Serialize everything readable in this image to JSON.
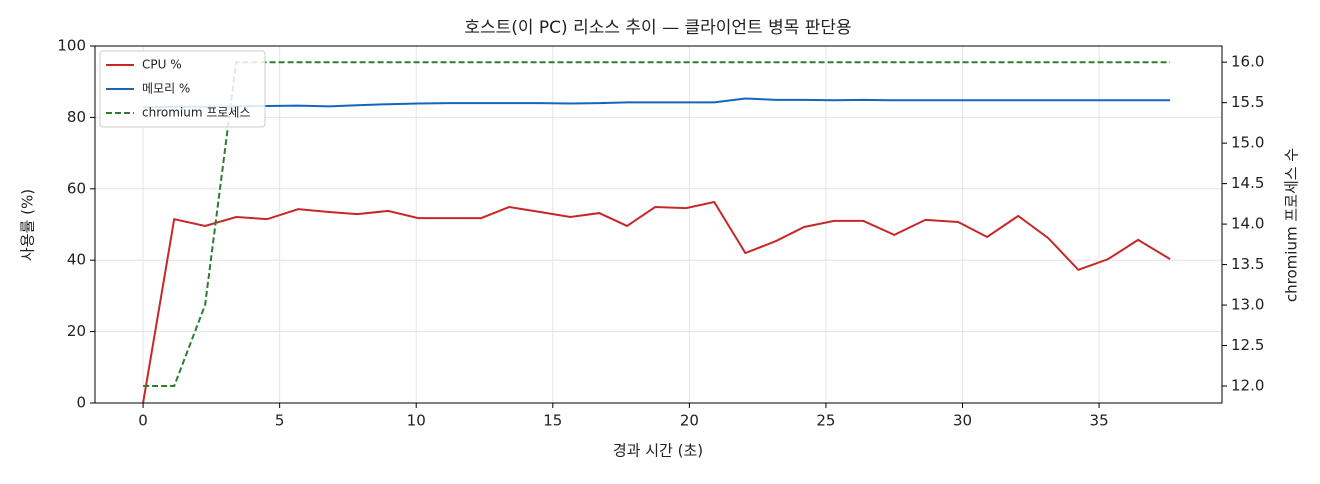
{
  "chart_data": {
    "type": "line",
    "title": "호스트(이 PC) 리소스 추이 — 클라이언트 병목 판단용",
    "x_label": "경과 시간 (초)",
    "y_label": "사용률 (%)",
    "y2_label": "chromium 프로세스 수",
    "x": [
      0,
      1.14,
      2.27,
      3.41,
      4.54,
      5.68,
      6.81,
      7.84,
      8.97,
      10.07,
      11.2,
      12.38,
      13.4,
      14.54,
      15.64,
      16.7,
      17.72,
      18.75,
      19.88,
      20.91,
      22.05,
      23.18,
      24.2,
      25.3,
      26.37,
      27.5,
      28.64,
      29.84,
      30.9,
      32.04,
      33.14,
      34.24,
      35.33,
      36.43,
      37.6
    ],
    "series": [
      {
        "name": "CPU %",
        "color": "#c62828",
        "style": "solid",
        "axis": "y",
        "values": [
          0,
          51.5,
          49.6,
          52.1,
          51.5,
          54.3,
          53.5,
          52.9,
          53.8,
          51.8,
          51.8,
          51.8,
          54.9,
          53.5,
          52.1,
          53.2,
          49.6,
          54.9,
          54.6,
          56.3,
          42,
          45.4,
          49.3,
          51,
          51,
          47.1,
          51.3,
          50.7,
          46.5,
          52.4,
          46.2,
          37.3,
          40.3,
          45.7,
          40.3
        ]
      },
      {
        "name": "메모리 %",
        "color": "#1565c0",
        "style": "solid",
        "axis": "y",
        "values": [
          82.8,
          83,
          83,
          83.1,
          83.2,
          83.3,
          83.1,
          83.4,
          83.7,
          83.9,
          84,
          84,
          84,
          84,
          83.9,
          84,
          84.2,
          84.2,
          84.2,
          84.2,
          85.3,
          84.9,
          84.9,
          84.8,
          84.9,
          84.8,
          84.8,
          84.8,
          84.8,
          84.8,
          84.8,
          84.8,
          84.8,
          84.8,
          84.8
        ]
      },
      {
        "name": "chromium 프로세스",
        "color": "#2e7d32",
        "style": "dashed",
        "axis": "y2",
        "values": [
          12,
          12,
          13,
          16,
          16,
          16,
          16,
          16,
          16,
          16,
          16,
          16,
          16,
          16,
          16,
          16,
          16,
          16,
          16,
          16,
          16,
          16,
          16,
          16,
          16,
          16,
          16,
          16,
          16,
          16,
          16,
          16,
          16,
          16,
          16
        ]
      }
    ],
    "xlim": [
      -1.76,
      39.5
    ],
    "xticks": [
      0,
      5,
      10,
      15,
      20,
      25,
      30,
      35
    ],
    "ylim": [
      0,
      100
    ],
    "yticks": [
      0,
      20,
      40,
      60,
      80,
      100
    ],
    "y2lim": [
      11.79,
      16.2
    ],
    "y2ticks": [
      {
        "value": 12,
        "label": "12.0"
      },
      {
        "value": 12.5,
        "label": "12.5"
      },
      {
        "value": 13,
        "label": "13.0"
      },
      {
        "value": 13.5,
        "label": "13.5"
      },
      {
        "value": 14,
        "label": "14.0"
      },
      {
        "value": 14.5,
        "label": "14.5"
      },
      {
        "value": 15,
        "label": "15.0"
      },
      {
        "value": 15.5,
        "label": "15.5"
      },
      {
        "value": 16,
        "label": "16.0"
      }
    ],
    "grid": true,
    "legend": "upper-left"
  }
}
